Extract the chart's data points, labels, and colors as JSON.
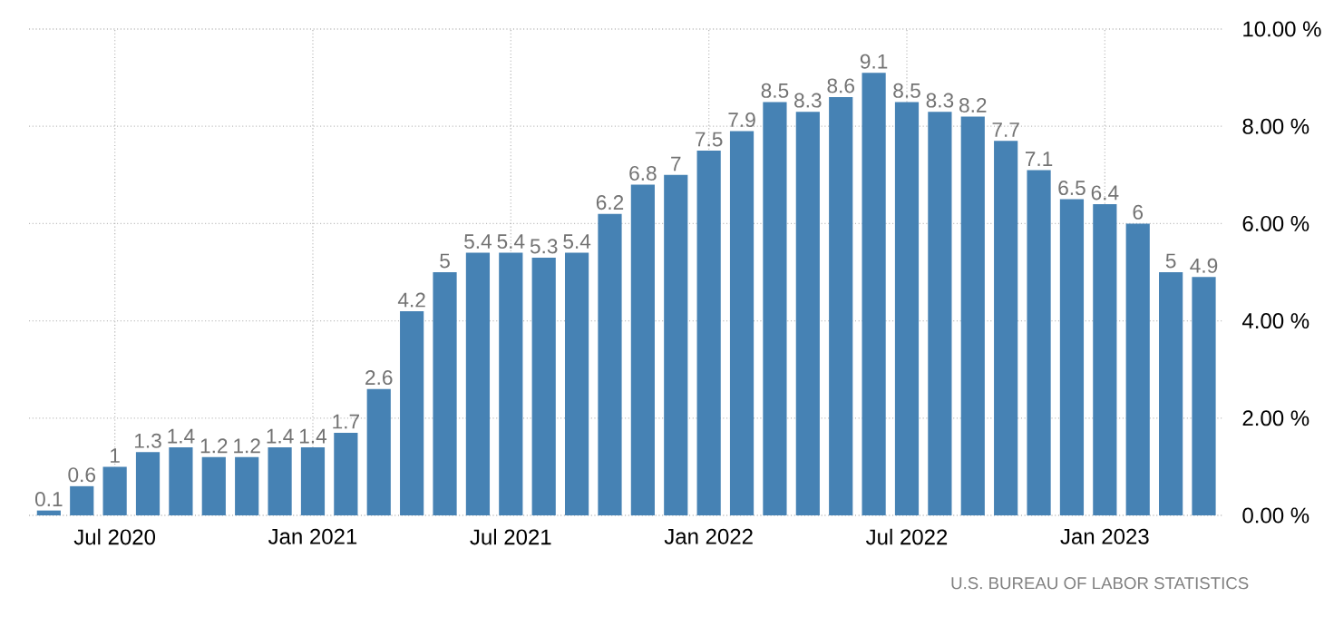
{
  "chart_data": {
    "type": "bar",
    "categories": [
      null,
      null,
      "Jul 2020",
      null,
      null,
      null,
      null,
      null,
      "Jan 2021",
      null,
      null,
      null,
      null,
      null,
      "Jul 2021",
      null,
      null,
      null,
      null,
      null,
      "Jan 2022",
      null,
      null,
      null,
      null,
      null,
      "Jul 2022",
      null,
      null,
      null,
      null,
      null,
      "Jan 2023",
      null,
      null,
      null
    ],
    "values": [
      0.1,
      0.6,
      1,
      1.3,
      1.4,
      1.2,
      1.2,
      1.4,
      1.4,
      1.7,
      2.6,
      4.2,
      5,
      5.4,
      5.4,
      5.3,
      5.4,
      6.2,
      6.8,
      7,
      7.5,
      7.9,
      8.5,
      8.3,
      8.6,
      9.1,
      8.5,
      8.3,
      8.2,
      7.7,
      7.1,
      6.5,
      6.4,
      6,
      5,
      4.9
    ],
    "color": "#4682b4",
    "ylim": [
      0,
      10
    ],
    "yticks": [
      {
        "value": 0,
        "label": "0.00 %"
      },
      {
        "value": 2,
        "label": "2.00 %"
      },
      {
        "value": 4,
        "label": "4.00 %"
      },
      {
        "value": 6,
        "label": "6.00 %"
      },
      {
        "value": 8,
        "label": "8.00 %"
      },
      {
        "value": 10,
        "label": "10.00 %"
      }
    ],
    "grid": true,
    "data_labels": true,
    "annotations": [
      "U.S. BUREAU OF LABOR STATISTICS"
    ]
  }
}
